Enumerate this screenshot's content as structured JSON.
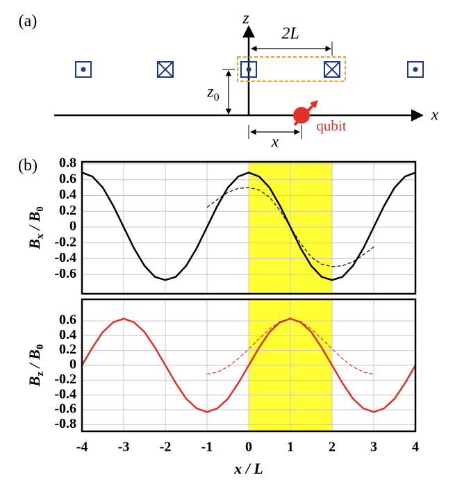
{
  "diagram": {
    "panel_a": "(a)",
    "panel_b": "(b)",
    "z_axis": "z",
    "x_axis": "x",
    "period": "2L",
    "height": [
      "z",
      "0"
    ],
    "offset": "x",
    "qubit": "qubit"
  },
  "chart_data": [
    {
      "type": "line",
      "ylabel": [
        "B",
        "x",
        " / B",
        "0"
      ],
      "x": [
        -4,
        -3.75,
        -3.5,
        -3.25,
        -3,
        -2.75,
        -2.5,
        -2.25,
        -2,
        -1.75,
        -1.5,
        -1.25,
        -1,
        -0.75,
        -0.5,
        -0.25,
        0,
        0.25,
        0.5,
        0.75,
        1,
        1.25,
        1.5,
        1.75,
        2,
        2.25,
        2.5,
        2.75,
        3,
        3.25,
        3.5,
        3.75,
        4
      ],
      "series": [
        {
          "color": "#000000",
          "dashed": false,
          "values": [
            0.69,
            0.64,
            0.5,
            0.27,
            0,
            -0.27,
            -0.49,
            -0.63,
            -0.67,
            -0.63,
            -0.49,
            -0.27,
            0,
            0.27,
            0.5,
            0.64,
            0.69,
            0.64,
            0.5,
            0.27,
            0,
            -0.27,
            -0.49,
            -0.63,
            -0.67,
            -0.63,
            -0.49,
            -0.27,
            0,
            0.27,
            0.5,
            0.64,
            0.69
          ]
        },
        {
          "color": "#000000",
          "dashed": true,
          "values": [
            null,
            null,
            null,
            null,
            null,
            null,
            null,
            null,
            null,
            null,
            null,
            null,
            0.25,
            0.35,
            0.44,
            0.49,
            0.5,
            0.47,
            0.38,
            0.21,
            0,
            -0.21,
            -0.38,
            -0.47,
            -0.5,
            -0.49,
            -0.44,
            -0.35,
            -0.25,
            null,
            null,
            null,
            null
          ]
        }
      ],
      "xlim": [
        -4,
        4
      ],
      "ylim": [
        -0.844,
        0.826
      ],
      "yticks": [
        -0.6,
        -0.4,
        -0.2,
        0,
        0.2,
        0.4,
        0.6,
        0.8
      ],
      "highlight": [
        0,
        2
      ],
      "highlight_color": "#ffff33",
      "grid": true
    },
    {
      "type": "line",
      "ylabel": [
        "B",
        "z",
        " / B",
        "0"
      ],
      "xlabel": "x / L",
      "x": [
        -4,
        -3.75,
        -3.5,
        -3.25,
        -3,
        -2.75,
        -2.5,
        -2.25,
        -2,
        -1.75,
        -1.5,
        -1.25,
        -1,
        -0.75,
        -0.5,
        -0.25,
        0,
        0.25,
        0.5,
        0.75,
        1,
        1.25,
        1.5,
        1.75,
        2,
        2.25,
        2.5,
        2.75,
        3,
        3.25,
        3.5,
        3.75,
        4
      ],
      "series": [
        {
          "color": "#e0302a",
          "dashed": false,
          "values": [
            0,
            0.24,
            0.45,
            0.58,
            0.63,
            0.58,
            0.45,
            0.24,
            0,
            -0.24,
            -0.45,
            -0.58,
            -0.63,
            -0.58,
            -0.45,
            -0.24,
            0,
            0.24,
            0.45,
            0.58,
            0.63,
            0.58,
            0.45,
            0.24,
            0,
            -0.24,
            -0.45,
            -0.58,
            -0.63,
            -0.58,
            -0.45,
            -0.24,
            0
          ]
        },
        {
          "color": "#e0302a",
          "dashed": true,
          "values": [
            null,
            null,
            null,
            null,
            null,
            null,
            null,
            null,
            null,
            null,
            null,
            null,
            -0.12,
            -0.09,
            -0.02,
            0.09,
            0.22,
            0.36,
            0.49,
            0.59,
            0.63,
            0.59,
            0.49,
            0.36,
            0.22,
            0.09,
            -0.02,
            -0.09,
            -0.12,
            null,
            null,
            null,
            null
          ]
        }
      ],
      "xlim": [
        -4,
        4
      ],
      "ylim": [
        -0.89,
        0.89
      ],
      "xticks": [
        -4,
        -3,
        -2,
        -1,
        0,
        1,
        2,
        3,
        4
      ],
      "yticks": [
        -0.8,
        -0.6,
        -0.4,
        -0.2,
        0,
        0.2,
        0.4,
        0.6
      ],
      "highlight": [
        0,
        2
      ],
      "highlight_color": "#ffff33",
      "grid": true
    }
  ]
}
